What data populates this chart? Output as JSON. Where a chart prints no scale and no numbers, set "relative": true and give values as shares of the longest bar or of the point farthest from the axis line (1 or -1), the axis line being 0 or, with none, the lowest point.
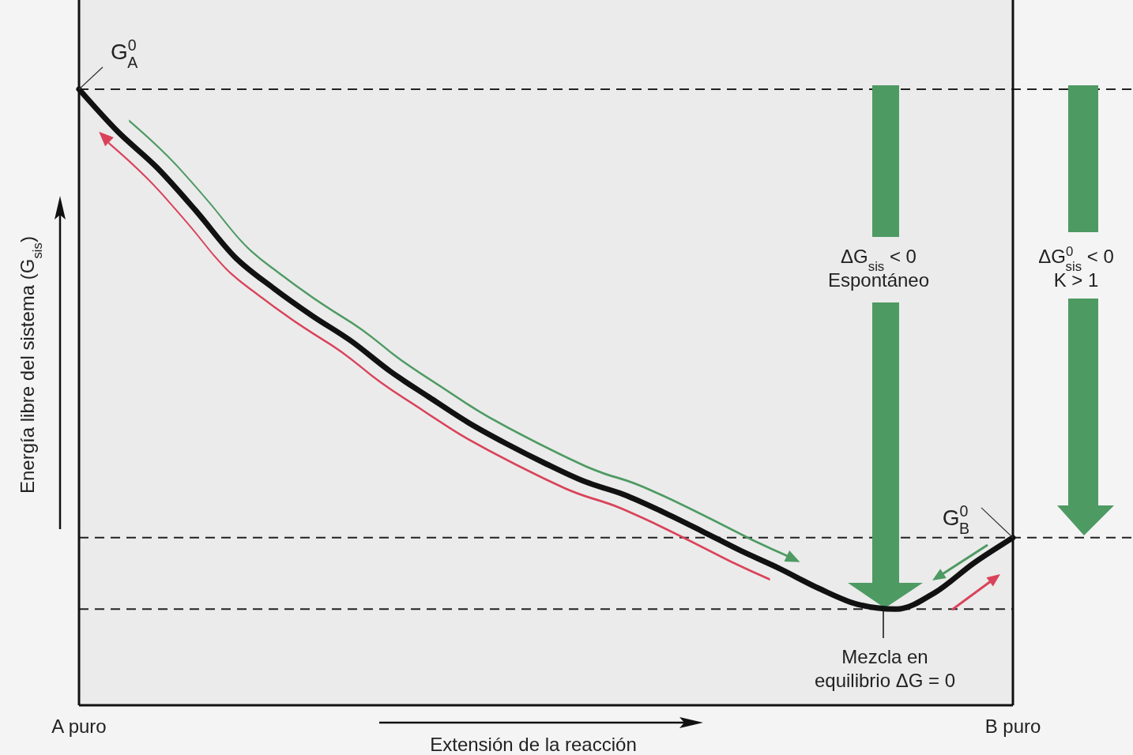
{
  "chart_data": {
    "type": "line",
    "relative": true,
    "categories": [
      "A puro",
      null,
      null,
      null,
      null,
      null,
      null,
      null,
      null,
      null,
      null,
      null,
      null,
      null,
      null,
      null,
      null,
      null,
      null,
      null,
      null,
      null,
      null,
      null,
      "B puro"
    ],
    "series": [
      {
        "color": "#111111",
        "values": [
          1,
          0.931,
          0.873,
          0.803,
          0.728,
          0.677,
          0.632,
          0.591,
          0.542,
          0.5,
          0.459,
          0.424,
          0.392,
          0.363,
          0.342,
          0.314,
          0.283,
          0.251,
          0.222,
          0.19,
          0.164,
          0.156,
          0.183,
          0.231,
          0.272
        ]
      }
    ],
    "xlabel": "Extensión de la reacción",
    "ylabel": "Energía libre del sistema (G$_{sis}$)",
    "ref_lines": [
      {
        "axis": "y",
        "value": 1,
        "color": "#222222",
        "line_style": "dashed"
      },
      {
        "axis": "y",
        "value": 0.156,
        "color": "#222222",
        "line_style": "dashed"
      },
      {
        "axis": "y",
        "value": 0.272,
        "color": "#222222",
        "line_style": "dashed"
      }
    ],
    "annotations": [
      {
        "text": "G$^{0}$$_{A}$",
        "x": "A puro",
        "y": 1
      },
      {
        "text": "G$^{0}$$_{B}$",
        "x": "B puro",
        "y": 0.272
      },
      "ΔG$_{sis}$ < 0\nEspontáneo",
      "ΔG$^{0}$$_{sis}$ < 0\nK > 1",
      "Mezcla en\nequilibrio ΔG = 0"
    ]
  }
}
